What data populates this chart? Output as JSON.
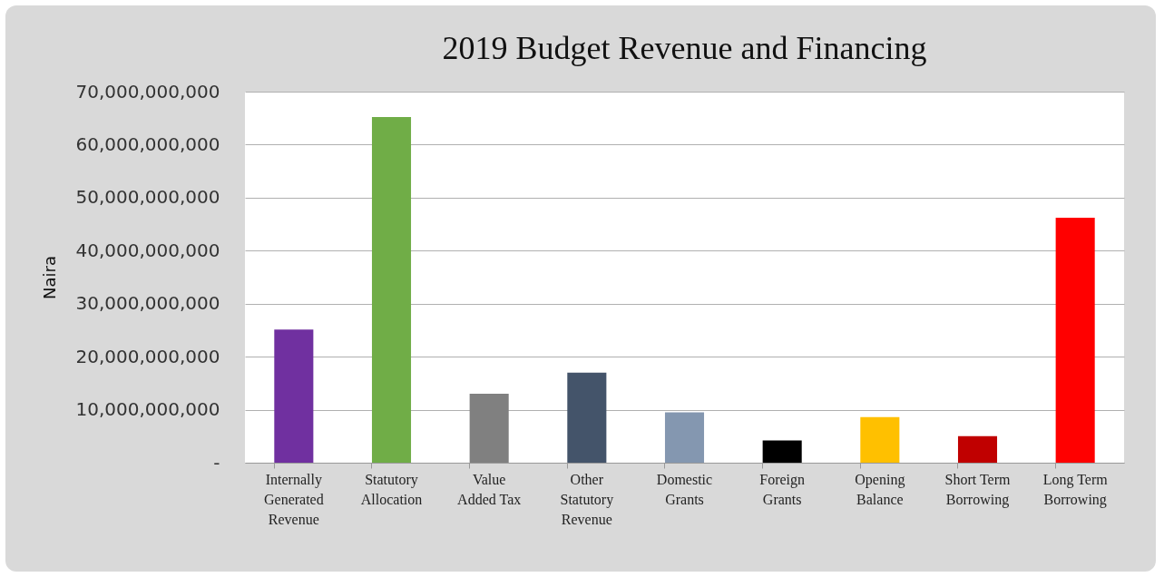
{
  "chart_data": {
    "type": "bar",
    "title": "2019 Budget Revenue and Financing",
    "ylabel": "Naira",
    "categories": [
      "Internally Generated Revenue",
      "Statutory Allocation",
      "Value Added Tax",
      "Other Statutory Revenue",
      "Domestic Grants",
      "Foreign Grants",
      "Opening Balance",
      "Short Term Borrowing",
      "Long Term Borrowing"
    ],
    "values": [
      25100000000,
      65200000000,
      13000000000,
      17000000000,
      9500000000,
      4200000000,
      8600000000,
      5000000000,
      46200000000
    ],
    "colors": [
      "#7030a0",
      "#70ad47",
      "#808080",
      "#44546a",
      "#8497b0",
      "#000000",
      "#ffc000",
      "#c00000",
      "#ff0000"
    ],
    "ylim": [
      0,
      70000000000
    ],
    "yticks": [
      {
        "value": 0,
        "label": "-"
      },
      {
        "value": 10000000000,
        "label": "10,000,000,000"
      },
      {
        "value": 20000000000,
        "label": "20,000,000,000"
      },
      {
        "value": 30000000000,
        "label": "30,000,000,000"
      },
      {
        "value": 40000000000,
        "label": "40,000,000,000"
      },
      {
        "value": 50000000000,
        "label": "50,000,000,000"
      },
      {
        "value": 60000000000,
        "label": "60,000,000,000"
      },
      {
        "value": 70000000000,
        "label": "70,000,000,000"
      }
    ],
    "grid": "y",
    "legend": false
  }
}
